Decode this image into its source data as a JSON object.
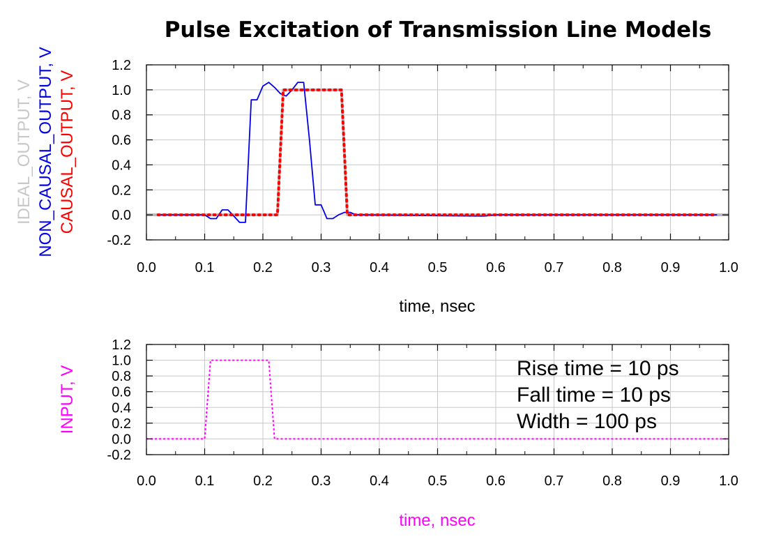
{
  "title": "Pulse Excitation of Transmission Line Models",
  "chart_data": [
    {
      "type": "line",
      "xlabel": "time, nsec",
      "ylabels": [
        "IDEAL_OUTPUT, V",
        "NON_CAUSAL_OUTPUT, V",
        "CAUSAL_OUTPUT, V"
      ],
      "xlim": [
        0.0,
        1.0
      ],
      "ylim": [
        -0.2,
        1.2
      ],
      "xticks": [
        "0.0",
        "0.1",
        "0.2",
        "0.3",
        "0.4",
        "0.5",
        "0.6",
        "0.7",
        "0.8",
        "0.9",
        "1.0"
      ],
      "yticks": [
        "-0.2",
        "0.0",
        "0.2",
        "0.4",
        "0.6",
        "0.8",
        "1.0",
        "1.2"
      ],
      "grid": true,
      "series": [
        {
          "name": "IDEAL_OUTPUT, V",
          "color": "#b8b8b8",
          "style": "solid",
          "x": [
            0.0,
            0.225,
            0.235,
            0.335,
            0.345,
            1.0
          ],
          "y": [
            0.0,
            0.0,
            1.0,
            1.0,
            0.0,
            0.0
          ]
        },
        {
          "name": "NON_CAUSAL_OUTPUT, V",
          "color": "#0000ee",
          "style": "solid",
          "x": [
            0.02,
            0.1,
            0.11,
            0.12,
            0.13,
            0.14,
            0.15,
            0.16,
            0.17,
            0.18,
            0.19,
            0.2,
            0.21,
            0.22,
            0.23,
            0.24,
            0.25,
            0.26,
            0.27,
            0.28,
            0.29,
            0.3,
            0.31,
            0.32,
            0.33,
            0.34,
            0.35,
            0.36,
            0.37,
            0.58,
            0.6,
            0.62,
            0.98
          ],
          "y": [
            0.0,
            0.0,
            -0.03,
            -0.03,
            0.04,
            0.04,
            -0.01,
            -0.06,
            -0.06,
            0.92,
            0.92,
            1.03,
            1.06,
            1.02,
            0.97,
            0.95,
            1.0,
            1.06,
            1.06,
            0.6,
            0.08,
            0.08,
            -0.03,
            -0.03,
            0.0,
            0.02,
            0.02,
            0.0,
            0.0,
            -0.01,
            0.0,
            0.0,
            0.0
          ]
        },
        {
          "name": "CAUSAL_OUTPUT, V",
          "color": "#ff0000",
          "style": "dotted",
          "x": [
            0.02,
            0.225,
            0.235,
            0.335,
            0.345,
            0.98
          ],
          "y": [
            0.0,
            0.0,
            1.0,
            1.0,
            0.0,
            0.0
          ]
        }
      ]
    },
    {
      "type": "line",
      "xlabel": "time, nsec",
      "ylabel": "INPUT, V",
      "xlim": [
        0.0,
        1.0
      ],
      "ylim": [
        -0.2,
        1.2
      ],
      "xticks": [
        "0.0",
        "0.1",
        "0.2",
        "0.3",
        "0.4",
        "0.5",
        "0.6",
        "0.7",
        "0.8",
        "0.9",
        "1.0"
      ],
      "yticks": [
        "-0.2",
        "0.0",
        "0.2",
        "0.4",
        "0.6",
        "0.8",
        "1.0",
        "1.2"
      ],
      "grid": true,
      "series": [
        {
          "name": "INPUT, V",
          "color": "#ff00ff",
          "style": "dashed",
          "x": [
            0.0,
            0.1,
            0.11,
            0.21,
            0.22,
            1.0
          ],
          "y": [
            0.0,
            0.0,
            1.0,
            1.0,
            0.0,
            0.0
          ]
        }
      ],
      "annotations": [
        "Rise time = 10 ps",
        "Fall time = 10 ps",
        "Width = 100 ps"
      ]
    }
  ]
}
